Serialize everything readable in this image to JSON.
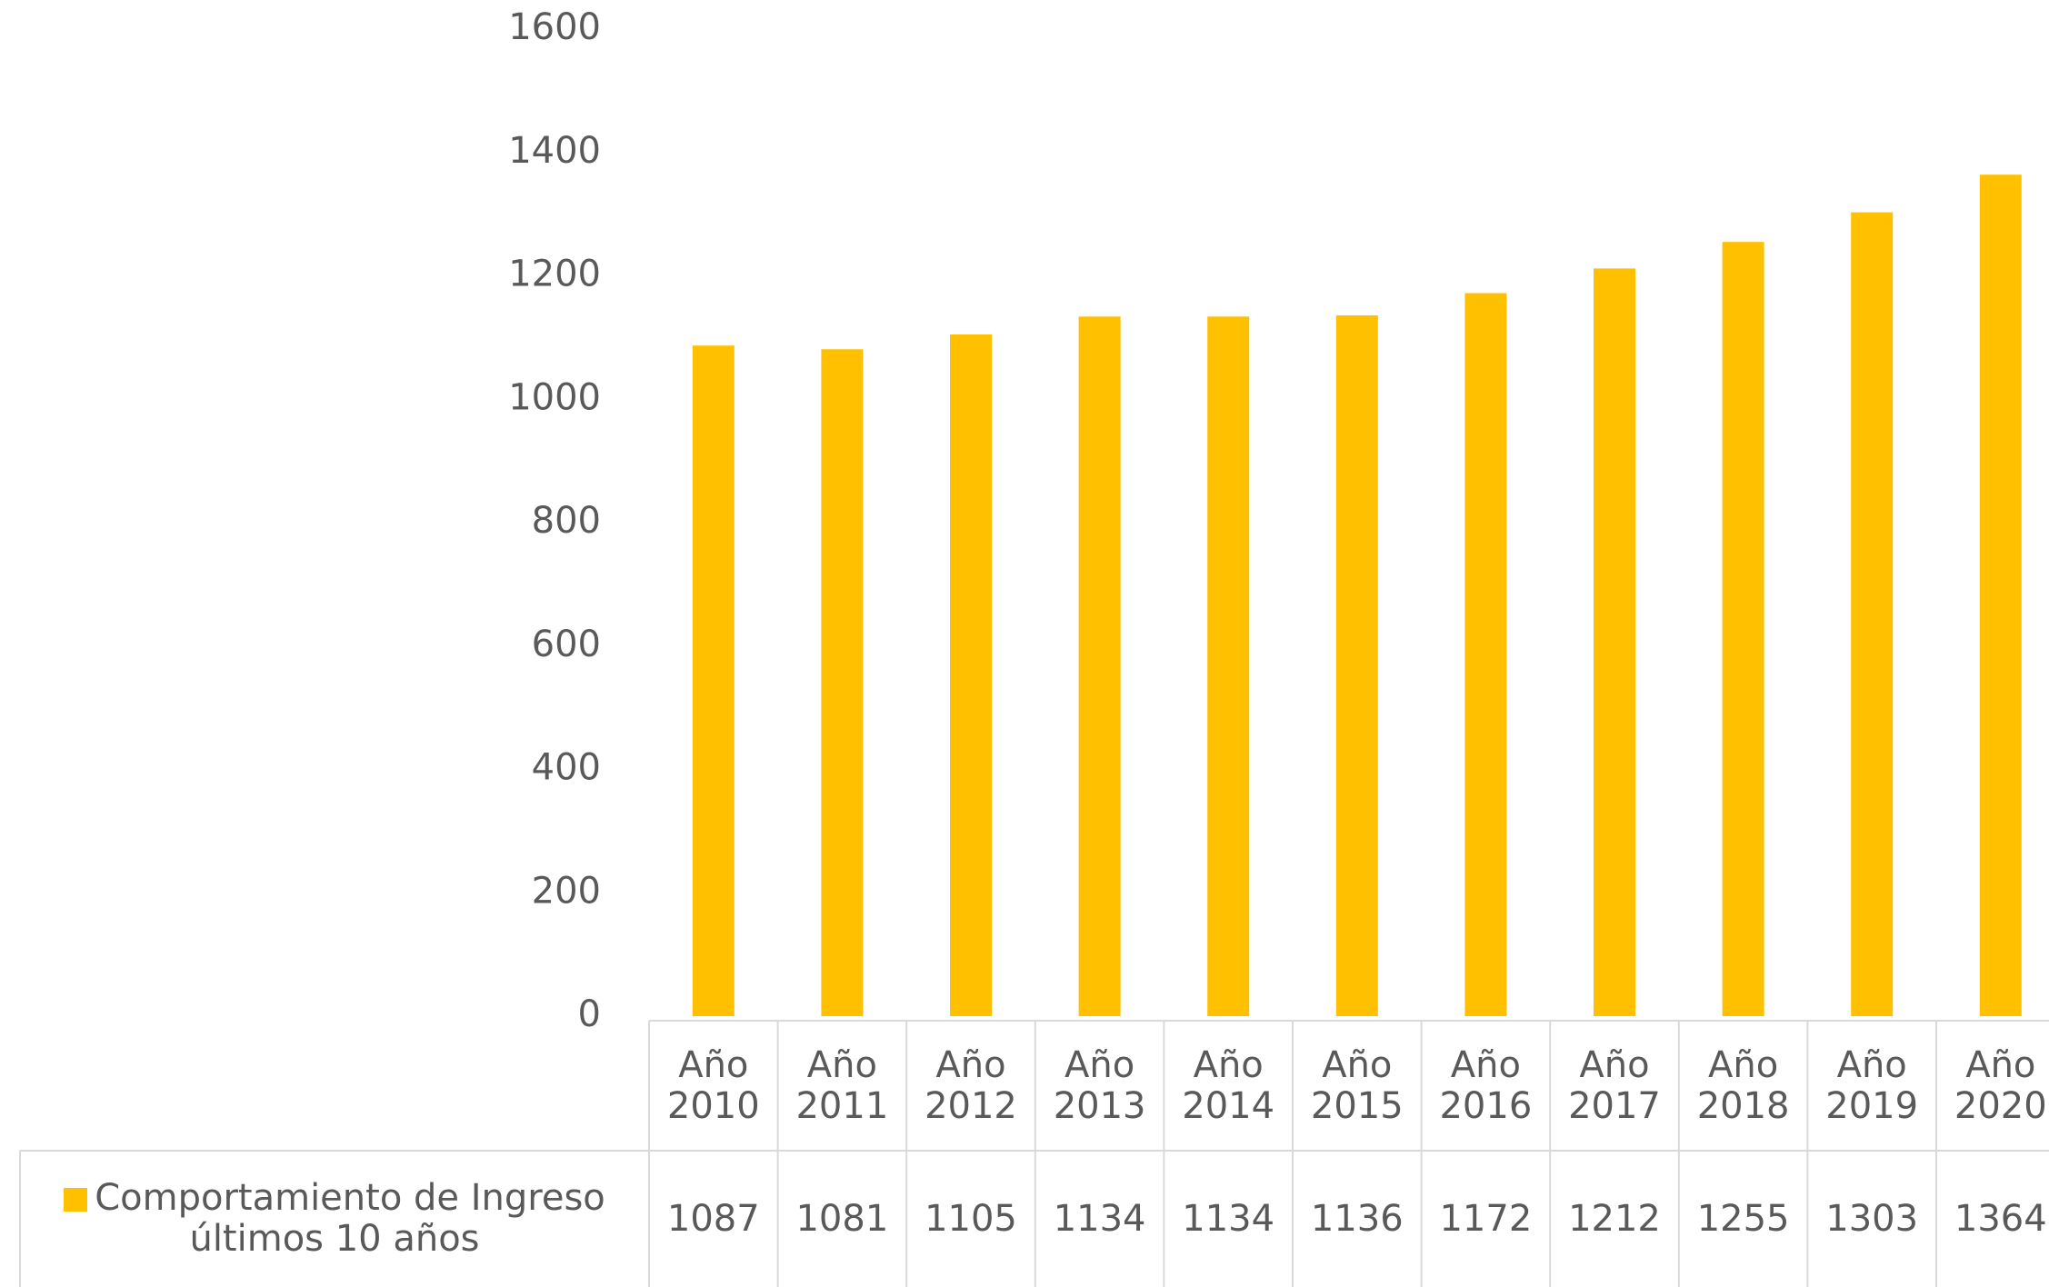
{
  "chart_data": {
    "type": "bar",
    "categories": [
      "Año 2010",
      "Año 2011",
      "Año 2012",
      "Año 2013",
      "Año 2014",
      "Año 2015",
      "Año 2016",
      "Año 2017",
      "Año 2018",
      "Año 2019",
      "Año 2020"
    ],
    "series": [
      {
        "name": "Comportamiento de Ingreso últimos 10 años",
        "color": "#ffc000",
        "values": [
          1087,
          1081,
          1105,
          1134,
          1134,
          1136,
          1172,
          1212,
          1255,
          1303,
          1364
        ]
      }
    ],
    "ylim": [
      0,
      1600
    ],
    "yticks": [
      0,
      200,
      400,
      600,
      800,
      1000,
      1200,
      1400,
      1600
    ],
    "grid": false,
    "data_table": true
  }
}
